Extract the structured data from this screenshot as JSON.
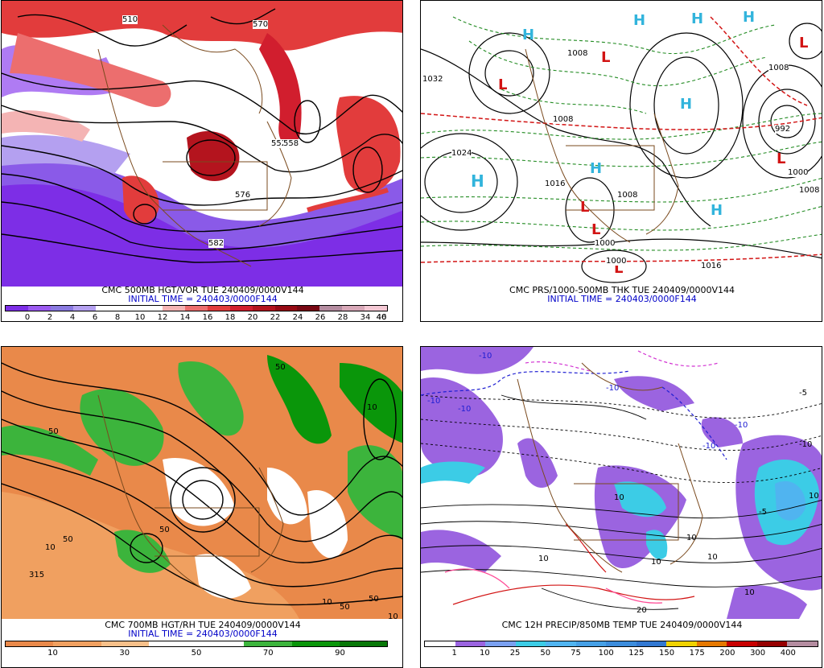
{
  "panels": [
    {
      "title": "CMC 500MB HGT/VOR TUE 240409/0000V144",
      "subtitle": "INITIAL TIME = 240403/0000F144",
      "colorbar": {
        "colors": [
          "#7d2ee6",
          "#9b5af0",
          "#8a7ae0",
          "#b4a0f0",
          "#ffffff",
          "#ffffff",
          "#ffffff",
          "#f4b4b4",
          "#ec6e6e",
          "#e23c3c",
          "#d11e2e",
          "#b4141e",
          "#960a14",
          "#780814",
          "#b48ca0",
          "#d8a8b8",
          "#f4c8d4"
        ],
        "labels": [
          "0",
          "2",
          "4",
          "6",
          "8",
          "10",
          "12",
          "14",
          "16",
          "18",
          "20",
          "22",
          "24",
          "26",
          "28",
          "34",
          "40",
          "46"
        ]
      },
      "map_labels": [
        "510",
        "552",
        "558",
        "576",
        "582",
        "570"
      ],
      "highs": [],
      "lows": []
    },
    {
      "title": "CMC PRS/1000-500MB THK TUE 240409/0000V144",
      "subtitle": "INITIAL TIME = 240403/0000F144",
      "colorbar": null,
      "map_labels": [
        "1032",
        "1024",
        "1008",
        "1008",
        "1016",
        "1000",
        "1000",
        "1008",
        "992",
        "1000",
        "1008",
        "1016",
        "1008"
      ],
      "highs": [
        "H",
        "H",
        "H",
        "H",
        "H",
        "H",
        "H",
        "H"
      ],
      "lows": [
        "L",
        "L",
        "L",
        "L",
        "L",
        "L",
        "L"
      ]
    },
    {
      "title": "CMC 700MB HGT/RH TUE 240409/0000V144",
      "subtitle": "INITIAL TIME = 240403/0000F144",
      "colorbar": {
        "colors": [
          "#e9894a",
          "#f0a060",
          "#f7c08a",
          "#ffffff",
          "#ffffff",
          "#3cb43c",
          "#0a960a",
          "#087808"
        ],
        "labels": [
          "10",
          "30",
          "50",
          "70",
          "90"
        ]
      },
      "map_labels": [
        "50",
        "50",
        "10",
        "50",
        "50",
        "315",
        "50",
        "10",
        "10",
        "50",
        "10"
      ],
      "highs": [],
      "lows": []
    },
    {
      "title": "CMC 12H PRECIP/850MB TEMP TUE 240409/0000V144",
      "subtitle": "",
      "colorbar": {
        "colors": [
          "#ffffff",
          "#9b64e0",
          "#7aa0f0",
          "#3ccce6",
          "#50b4f0",
          "#46a0e6",
          "#3c8cdc",
          "#3278d2",
          "#f0d200",
          "#e67800",
          "#c80000",
          "#960000",
          "#b48ca0"
        ],
        "labels": [
          "1",
          "10",
          "25",
          "50",
          "75",
          "100",
          "125",
          "150",
          "175",
          "200",
          "300",
          "400"
        ]
      },
      "map_labels": [
        "-10",
        "-10",
        "-10",
        "-10",
        "-10",
        "-5",
        "-5",
        "-10",
        "10",
        "10",
        "-10",
        "10",
        "10",
        "20",
        "10",
        "10",
        "10"
      ],
      "highs": [],
      "lows": []
    }
  ]
}
